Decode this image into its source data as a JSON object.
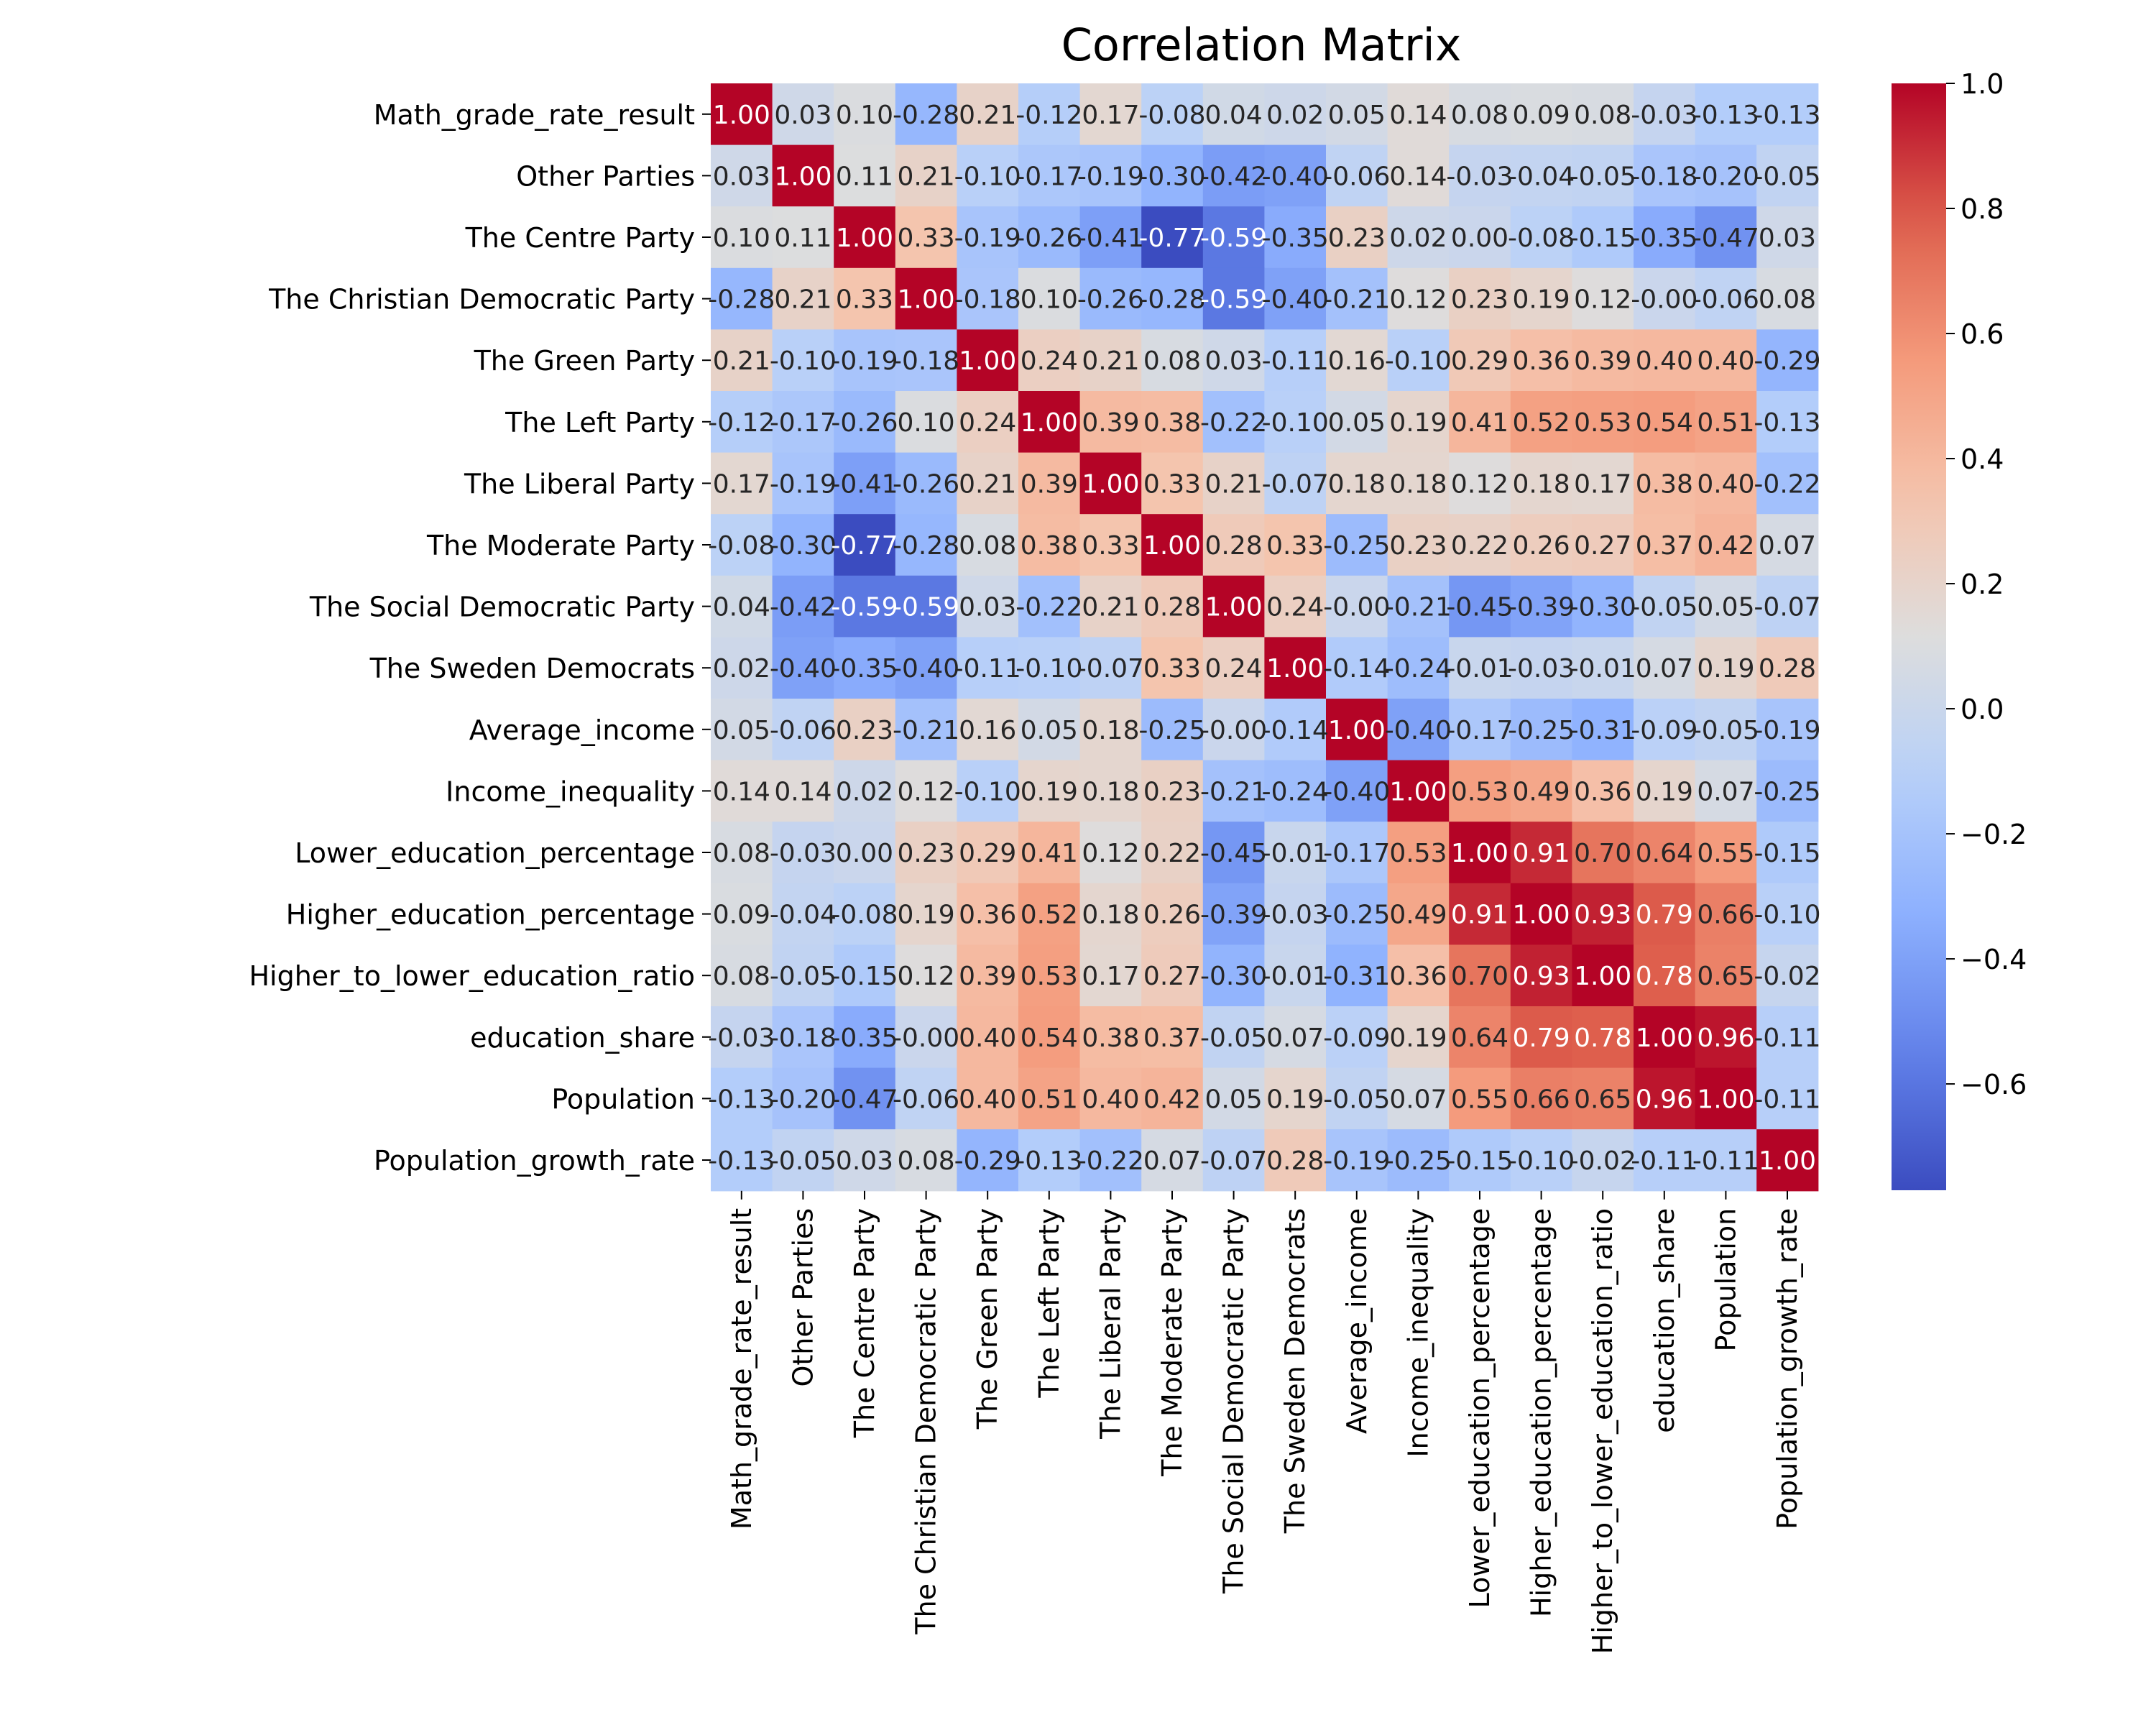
{
  "chart_data": {
    "type": "heatmap",
    "title": "Correlation Matrix",
    "labels": [
      "Math_grade_rate_result",
      "Other Parties",
      "The Centre Party",
      "The Christian Democratic Party",
      "The Green Party",
      "The Left Party",
      "The Liberal Party",
      "The Moderate Party",
      "The Social Democratic Party",
      "The Sweden Democrats",
      "Average_income",
      "Income_inequality",
      "Lower_education_percentage",
      "Higher_education_percentage",
      "Higher_to_lower_education_ratio",
      "education_share",
      "Population",
      "Population_growth_rate"
    ],
    "matrix": [
      [
        1.0,
        0.03,
        0.1,
        -0.28,
        0.21,
        -0.12,
        0.17,
        -0.08,
        0.04,
        0.02,
        0.05,
        0.14,
        0.08,
        0.09,
        0.08,
        -0.03,
        -0.13,
        -0.13
      ],
      [
        0.03,
        1.0,
        0.11,
        0.21,
        -0.1,
        -0.17,
        -0.19,
        -0.3,
        -0.42,
        -0.4,
        -0.06,
        0.14,
        -0.03,
        -0.04,
        -0.05,
        -0.18,
        -0.2,
        -0.05
      ],
      [
        0.1,
        0.11,
        1.0,
        0.33,
        -0.19,
        -0.26,
        -0.41,
        -0.77,
        -0.59,
        -0.35,
        0.23,
        0.02,
        0.0,
        -0.08,
        -0.15,
        -0.35,
        -0.47,
        0.03
      ],
      [
        -0.28,
        0.21,
        0.33,
        1.0,
        -0.18,
        0.1,
        -0.26,
        -0.28,
        -0.59,
        -0.4,
        -0.21,
        0.12,
        0.23,
        0.19,
        0.12,
        -0.0,
        -0.06,
        0.08
      ],
      [
        0.21,
        -0.1,
        -0.19,
        -0.18,
        1.0,
        0.24,
        0.21,
        0.08,
        0.03,
        -0.11,
        0.16,
        -0.1,
        0.29,
        0.36,
        0.39,
        0.4,
        0.4,
        -0.29
      ],
      [
        -0.12,
        -0.17,
        -0.26,
        0.1,
        0.24,
        1.0,
        0.39,
        0.38,
        -0.22,
        -0.1,
        0.05,
        0.19,
        0.41,
        0.52,
        0.53,
        0.54,
        0.51,
        -0.13
      ],
      [
        0.17,
        -0.19,
        -0.41,
        -0.26,
        0.21,
        0.39,
        1.0,
        0.33,
        0.21,
        -0.07,
        0.18,
        0.18,
        0.12,
        0.18,
        0.17,
        0.38,
        0.4,
        -0.22
      ],
      [
        -0.08,
        -0.3,
        -0.77,
        -0.28,
        0.08,
        0.38,
        0.33,
        1.0,
        0.28,
        0.33,
        -0.25,
        0.23,
        0.22,
        0.26,
        0.27,
        0.37,
        0.42,
        0.07
      ],
      [
        0.04,
        -0.42,
        -0.59,
        -0.59,
        0.03,
        -0.22,
        0.21,
        0.28,
        1.0,
        0.24,
        -0.0,
        -0.21,
        -0.45,
        -0.39,
        -0.3,
        -0.05,
        0.05,
        -0.07
      ],
      [
        0.02,
        -0.4,
        -0.35,
        -0.4,
        -0.11,
        -0.1,
        -0.07,
        0.33,
        0.24,
        1.0,
        -0.14,
        -0.24,
        -0.01,
        -0.03,
        -0.01,
        0.07,
        0.19,
        0.28
      ],
      [
        0.05,
        -0.06,
        0.23,
        -0.21,
        0.16,
        0.05,
        0.18,
        -0.25,
        -0.0,
        -0.14,
        1.0,
        -0.4,
        -0.17,
        -0.25,
        -0.31,
        -0.09,
        -0.05,
        -0.19
      ],
      [
        0.14,
        0.14,
        0.02,
        0.12,
        -0.1,
        0.19,
        0.18,
        0.23,
        -0.21,
        -0.24,
        -0.4,
        1.0,
        0.53,
        0.49,
        0.36,
        0.19,
        0.07,
        -0.25
      ],
      [
        0.08,
        -0.03,
        0.0,
        0.23,
        0.29,
        0.41,
        0.12,
        0.22,
        -0.45,
        -0.01,
        -0.17,
        0.53,
        1.0,
        0.91,
        0.7,
        0.64,
        0.55,
        -0.15
      ],
      [
        0.09,
        -0.04,
        -0.08,
        0.19,
        0.36,
        0.52,
        0.18,
        0.26,
        -0.39,
        -0.03,
        -0.25,
        0.49,
        0.91,
        1.0,
        0.93,
        0.79,
        0.66,
        -0.1
      ],
      [
        0.08,
        -0.05,
        -0.15,
        0.12,
        0.39,
        0.53,
        0.17,
        0.27,
        -0.3,
        -0.01,
        -0.31,
        0.36,
        0.7,
        0.93,
        1.0,
        0.78,
        0.65,
        -0.02
      ],
      [
        -0.03,
        -0.18,
        -0.35,
        -0.0,
        0.4,
        0.54,
        0.38,
        0.37,
        -0.05,
        0.07,
        -0.09,
        0.19,
        0.64,
        0.79,
        0.78,
        1.0,
        0.96,
        -0.11
      ],
      [
        -0.13,
        -0.2,
        -0.47,
        -0.06,
        0.4,
        0.51,
        0.4,
        0.42,
        0.05,
        0.19,
        -0.05,
        0.07,
        0.55,
        0.66,
        0.65,
        0.96,
        1.0,
        -0.11
      ],
      [
        -0.13,
        -0.05,
        0.03,
        0.08,
        -0.29,
        -0.13,
        -0.22,
        0.07,
        -0.07,
        0.28,
        -0.19,
        -0.25,
        -0.15,
        -0.1,
        -0.02,
        -0.11,
        -0.11,
        1.0
      ]
    ],
    "value_format": "2 decimals",
    "colormap": "coolwarm",
    "vmin": -0.77,
    "vmax": 1.0,
    "colorbar_ticks": [
      "−0.6",
      "−0.4",
      "−0.2",
      "0.0",
      "0.2",
      "0.4",
      "0.6",
      "0.8",
      "1.0"
    ],
    "colors": {
      "low": "#3b4cc0",
      "mid": "#dddddd",
      "high": "#b40426"
    }
  }
}
